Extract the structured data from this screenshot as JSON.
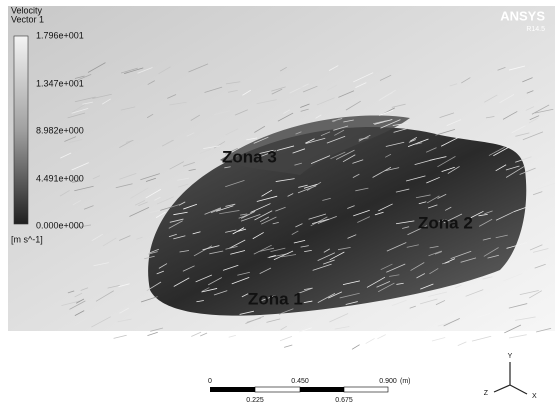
{
  "legend": {
    "title": "Velocity",
    "subtitle": "Vector 1",
    "labels": [
      "1.796e+001",
      "1.347e+001",
      "8.982e+000",
      "4.491e+000",
      "0.000e+000"
    ],
    "unit": "[m s^-1]"
  },
  "logo": {
    "brand": "ANSYS",
    "version": "R14.5"
  },
  "zones": [
    "Zona 3",
    "Zona 2",
    "Zona 1"
  ],
  "scale_bar": {
    "top_labels": [
      "0",
      "0.450",
      "0.900"
    ],
    "unit": "(m)",
    "bottom_labels": [
      "0.225",
      "0.675"
    ]
  },
  "triad": {
    "y": "Y",
    "x": "X",
    "z": "Z"
  }
}
